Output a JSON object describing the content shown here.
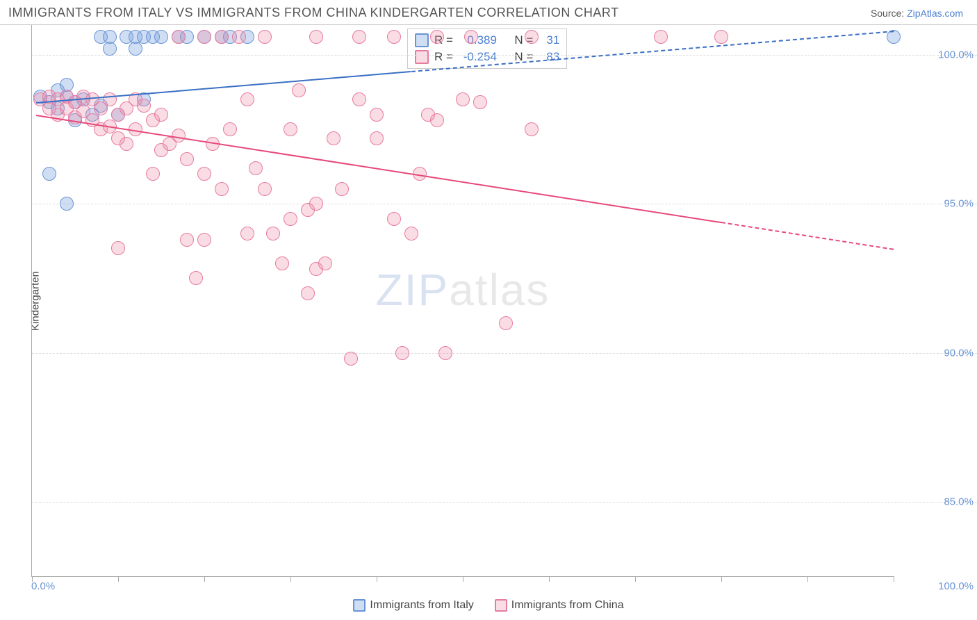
{
  "header": {
    "title": "IMMIGRANTS FROM ITALY VS IMMIGRANTS FROM CHINA KINDERGARTEN CORRELATION CHART",
    "source_prefix": "Source: ",
    "source_name": "ZipAtlas.com"
  },
  "chart": {
    "type": "scatter",
    "ylabel": "Kindergarten",
    "background_color": "#ffffff",
    "grid_color": "#dddddd",
    "axis_color": "#aaaaaa",
    "tick_label_color": "#6a94d4",
    "xlim": [
      0,
      100
    ],
    "ylim": [
      82.5,
      101.0
    ],
    "yticks": [
      85.0,
      90.0,
      95.0,
      100.0
    ],
    "ytick_labels": [
      "85.0%",
      "90.0%",
      "95.0%",
      "100.0%"
    ],
    "xtick_positions": [
      0,
      10,
      20,
      30,
      40,
      50,
      60,
      70,
      80,
      90,
      100
    ],
    "xlabel_min": "0.0%",
    "xlabel_max": "100.0%",
    "marker_radius": 10,
    "marker_stroke_width": 1.5,
    "watermark": {
      "zip": "ZIP",
      "atlas": "atlas"
    },
    "series": [
      {
        "id": "italy",
        "label": "Immigrants from Italy",
        "color_fill": "rgba(120,160,220,0.35)",
        "color_stroke": "#6a94d4",
        "trend_color": "#3b6fc4",
        "R": "0.389",
        "N": "31",
        "trend": {
          "x1": 0.5,
          "y1": 98.4,
          "x2": 100,
          "y2": 100.8,
          "dashed_from": 44
        },
        "points": [
          [
            1,
            98.6
          ],
          [
            2,
            98.4
          ],
          [
            3,
            98.2
          ],
          [
            4,
            98.6
          ],
          [
            5,
            98.4
          ],
          [
            3,
            98.8
          ],
          [
            4,
            99.0
          ],
          [
            2,
            96.0
          ],
          [
            4,
            95.0
          ],
          [
            8,
            100.6
          ],
          [
            9,
            100.6
          ],
          [
            9,
            100.2
          ],
          [
            11,
            100.6
          ],
          [
            12,
            100.6
          ],
          [
            12,
            100.2
          ],
          [
            13,
            100.6
          ],
          [
            14,
            100.6
          ],
          [
            15,
            100.6
          ],
          [
            17,
            100.6
          ],
          [
            18,
            100.6
          ],
          [
            20,
            100.6
          ],
          [
            22,
            100.6
          ],
          [
            23,
            100.6
          ],
          [
            25,
            100.6
          ],
          [
            5,
            97.8
          ],
          [
            8,
            98.3
          ],
          [
            10,
            98.0
          ],
          [
            6,
            98.5
          ],
          [
            7,
            98.0
          ],
          [
            100,
            100.6
          ],
          [
            13,
            98.5
          ]
        ]
      },
      {
        "id": "china",
        "label": "Immigrants from China",
        "color_fill": "rgba(240,140,170,0.30)",
        "color_stroke": "#e77ba0",
        "trend_color": "#e7497a",
        "R": "-0.254",
        "N": "83",
        "trend": {
          "x1": 0.5,
          "y1": 98.0,
          "x2": 100,
          "y2": 93.5,
          "dashed_from": 80
        },
        "points": [
          [
            1,
            98.5
          ],
          [
            2,
            98.6
          ],
          [
            2,
            98.2
          ],
          [
            3,
            98.5
          ],
          [
            3,
            98.0
          ],
          [
            4,
            98.6
          ],
          [
            4,
            98.2
          ],
          [
            5,
            98.4
          ],
          [
            5,
            97.9
          ],
          [
            6,
            98.6
          ],
          [
            6,
            98.1
          ],
          [
            7,
            98.5
          ],
          [
            7,
            97.8
          ],
          [
            8,
            98.2
          ],
          [
            8,
            97.5
          ],
          [
            9,
            98.5
          ],
          [
            9,
            97.6
          ],
          [
            10,
            98.0
          ],
          [
            10,
            97.2
          ],
          [
            11,
            98.2
          ],
          [
            12,
            98.5
          ],
          [
            12,
            97.5
          ],
          [
            13,
            98.3
          ],
          [
            14,
            97.8
          ],
          [
            15,
            98.0
          ],
          [
            15,
            96.8
          ],
          [
            16,
            97.0
          ],
          [
            17,
            97.3
          ],
          [
            18,
            96.5
          ],
          [
            19,
            92.5
          ],
          [
            20,
            96.0
          ],
          [
            20,
            93.8
          ],
          [
            21,
            97.0
          ],
          [
            22,
            95.5
          ],
          [
            23,
            97.5
          ],
          [
            25,
            98.5
          ],
          [
            25,
            94.0
          ],
          [
            26,
            96.2
          ],
          [
            27,
            95.5
          ],
          [
            28,
            94.0
          ],
          [
            29,
            93.0
          ],
          [
            30,
            97.5
          ],
          [
            30,
            94.5
          ],
          [
            31,
            98.8
          ],
          [
            32,
            94.8
          ],
          [
            32,
            92.0
          ],
          [
            33,
            95.0
          ],
          [
            33,
            92.8
          ],
          [
            34,
            93.0
          ],
          [
            35,
            97.2
          ],
          [
            36,
            95.5
          ],
          [
            37,
            89.8
          ],
          [
            38,
            98.5
          ],
          [
            40,
            98.0
          ],
          [
            40,
            97.2
          ],
          [
            42,
            94.5
          ],
          [
            43,
            90.0
          ],
          [
            44,
            94.0
          ],
          [
            45,
            96.0
          ],
          [
            46,
            98.0
          ],
          [
            47,
            97.8
          ],
          [
            48,
            90.0
          ],
          [
            50,
            98.5
          ],
          [
            52,
            98.4
          ],
          [
            55,
            91.0
          ],
          [
            58,
            97.5
          ],
          [
            17,
            100.6
          ],
          [
            20,
            100.6
          ],
          [
            22,
            100.6
          ],
          [
            24,
            100.6
          ],
          [
            27,
            100.6
          ],
          [
            33,
            100.6
          ],
          [
            38,
            100.6
          ],
          [
            42,
            100.6
          ],
          [
            47,
            100.6
          ],
          [
            51,
            100.6
          ],
          [
            58,
            100.6
          ],
          [
            10,
            93.5
          ],
          [
            73,
            100.6
          ],
          [
            80,
            100.6
          ],
          [
            18,
            93.8
          ],
          [
            14,
            96.0
          ],
          [
            11,
            97.0
          ]
        ]
      }
    ],
    "legend_top": {
      "r_label": "R =",
      "n_label": "N ="
    }
  }
}
